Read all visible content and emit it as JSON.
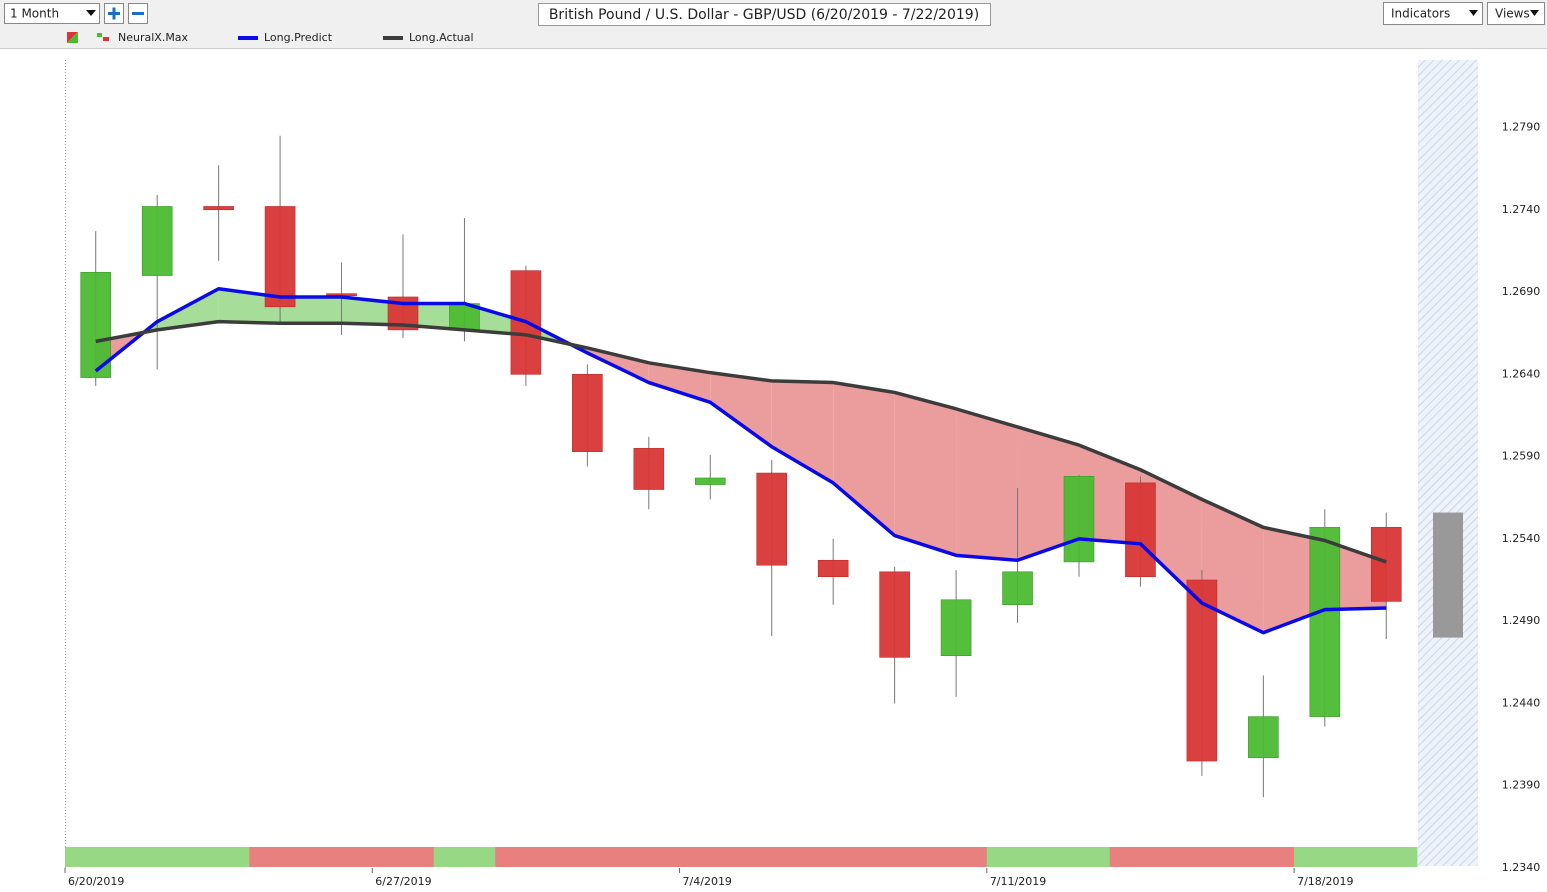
{
  "toolbar": {
    "period": "1 Month",
    "indicators": "Indicators",
    "views": "Views"
  },
  "chart_data": {
    "type": "candlestick",
    "title": "British Pound / U.S. Dollar - GBP/USD (6/20/2019 - 7/22/2019)",
    "categories": [
      "6/20/2019",
      null,
      null,
      null,
      null,
      "6/27/2019",
      null,
      null,
      null,
      null,
      "7/4/2019",
      null,
      null,
      null,
      null,
      "7/11/2019",
      null,
      null,
      null,
      null,
      "7/18/2019",
      null
    ],
    "open": [
      1.2638,
      1.27,
      1.2742,
      1.2742,
      1.2689,
      1.2687,
      1.2667,
      1.2703,
      1.264,
      1.2595,
      1.2573,
      1.258,
      1.2527,
      1.252,
      1.2469,
      1.25,
      1.2526,
      1.2574,
      1.2515,
      1.2407,
      1.2432,
      1.2547
    ],
    "high": [
      1.2727,
      1.2749,
      1.2767,
      1.2785,
      1.2708,
      1.2725,
      1.2735,
      1.2706,
      1.2646,
      1.2602,
      1.2591,
      1.2588,
      1.254,
      1.2523,
      1.2521,
      1.2571,
      1.2579,
      1.2578,
      1.2521,
      1.2457,
      1.2558,
      1.2556
    ],
    "low": [
      1.2633,
      1.2643,
      1.2709,
      1.2672,
      1.2664,
      1.2662,
      1.266,
      1.2633,
      1.2584,
      1.2558,
      1.2564,
      1.2481,
      1.25,
      1.244,
      1.2444,
      1.2489,
      1.2517,
      1.2511,
      1.2396,
      1.2383,
      1.2426,
      1.2479
    ],
    "close": [
      1.2702,
      1.2742,
      1.274,
      1.2681,
      1.2688,
      1.2667,
      1.2683,
      1.264,
      1.2593,
      1.257,
      1.2577,
      1.2524,
      1.2517,
      1.2468,
      1.2503,
      1.252,
      1.2578,
      1.2517,
      1.2405,
      1.2432,
      1.2547,
      1.2502
    ],
    "up_color": "#4cbb33",
    "down_color": "#d93636",
    "signal": {
      "name": "NeuralX.Max",
      "values": [
        1,
        1,
        1,
        -1,
        -1,
        -1,
        1,
        -1,
        -1,
        -1,
        -1,
        -1,
        -1,
        -1,
        -1,
        1,
        1,
        -1,
        -1,
        -1,
        1,
        1
      ],
      "up_color": "#96d883",
      "down_color": "#e88080"
    },
    "lines": [
      {
        "name": "Long.Predict",
        "color": "#0a0ae6",
        "values": [
          1.2642,
          1.2672,
          1.2692,
          1.2687,
          1.2687,
          1.2683,
          1.2683,
          1.2672,
          1.2653,
          1.2635,
          1.2623,
          1.2596,
          1.2574,
          1.2542,
          1.253,
          1.2527,
          1.254,
          1.2537,
          1.2501,
          1.2483,
          1.2497,
          1.2498
        ]
      },
      {
        "name": "Long.Actual",
        "color": "#3c3c3c",
        "values": [
          1.266,
          1.2667,
          1.2672,
          1.2671,
          1.2671,
          1.267,
          1.2667,
          1.2664,
          1.2656,
          1.2647,
          1.2641,
          1.2636,
          1.2635,
          1.2629,
          1.2619,
          1.2608,
          1.2597,
          1.2582,
          1.2564,
          1.2547,
          1.2539,
          1.2526
        ]
      }
    ],
    "fill_up_color": "#a6dd98",
    "fill_down_color": "#eb9c9c",
    "forecast_range": [
      1.248,
      1.2556
    ],
    "forecast_color": "#999999",
    "ylim": [
      1.234,
      1.2831
    ],
    "yticks": [
      {
        "value": 1.234,
        "label": "1.2340"
      },
      {
        "value": 1.239,
        "label": "1.2390"
      },
      {
        "value": 1.244,
        "label": "1.2440"
      },
      {
        "value": 1.249,
        "label": "1.2490"
      },
      {
        "value": 1.254,
        "label": "1.2540"
      },
      {
        "value": 1.259,
        "label": "1.2590"
      },
      {
        "value": 1.264,
        "label": "1.2640"
      },
      {
        "value": 1.269,
        "label": "1.2690"
      },
      {
        "value": 1.274,
        "label": "1.2740"
      },
      {
        "value": 1.279,
        "label": "1.2790"
      }
    ]
  }
}
